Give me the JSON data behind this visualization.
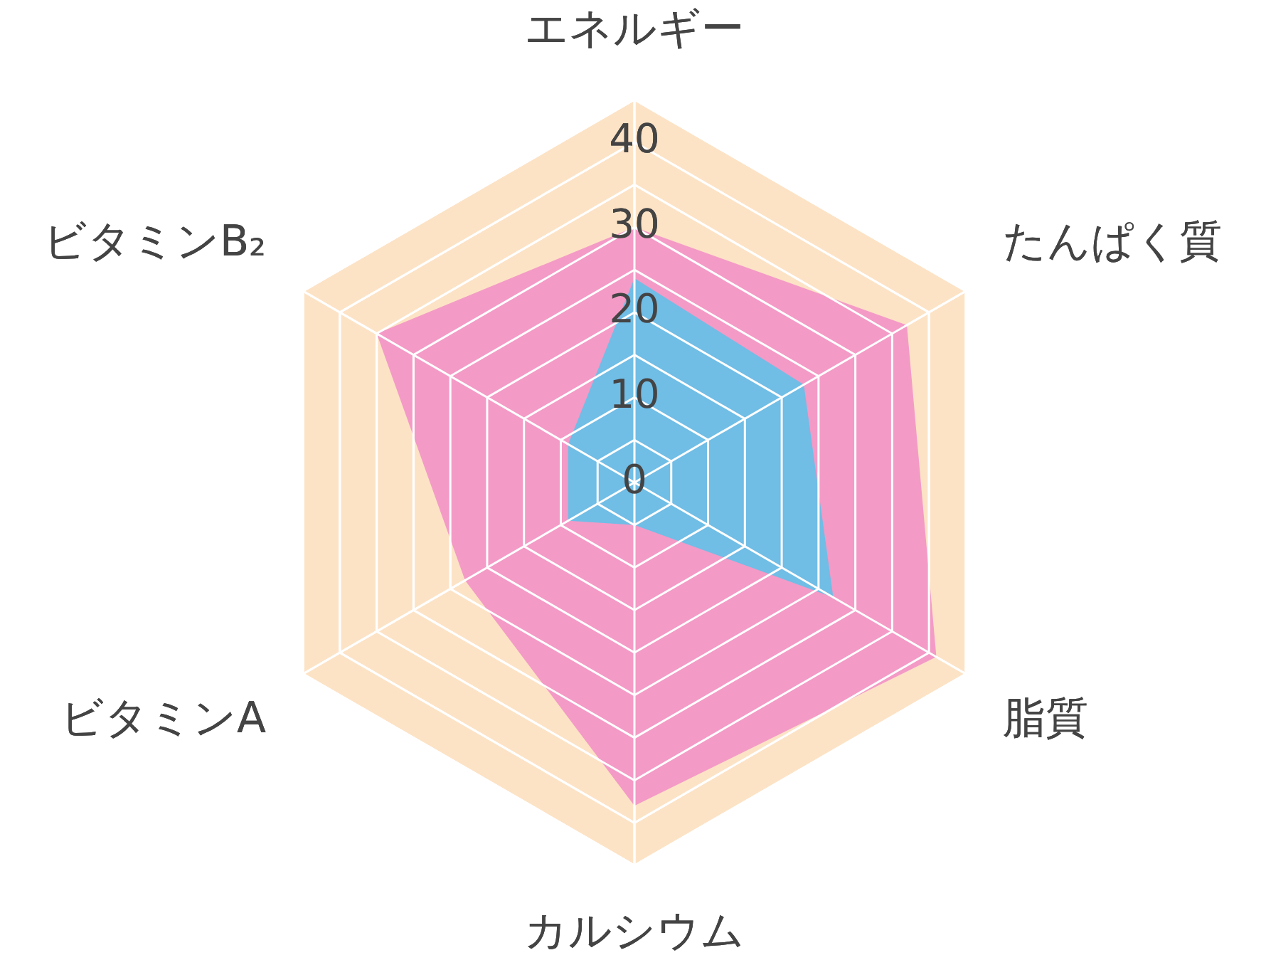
{
  "chart_data": {
    "type": "radar",
    "categories": [
      "エネルギー",
      "たんぱく質",
      "脂質",
      "カルシウム",
      "ビタミンA",
      "ビタミンB₂"
    ],
    "ylim": [
      0,
      45
    ],
    "yticks": [
      0,
      10,
      20,
      30,
      40
    ],
    "grid": true,
    "legend": false,
    "marker": "none",
    "series": [
      {
        "color": "#f49ac6",
        "values": [
          30,
          37,
          41,
          38,
          23,
          35
        ]
      },
      {
        "color": "#70bde6",
        "values": [
          24,
          23,
          27,
          5,
          9,
          9
        ]
      }
    ]
  }
}
